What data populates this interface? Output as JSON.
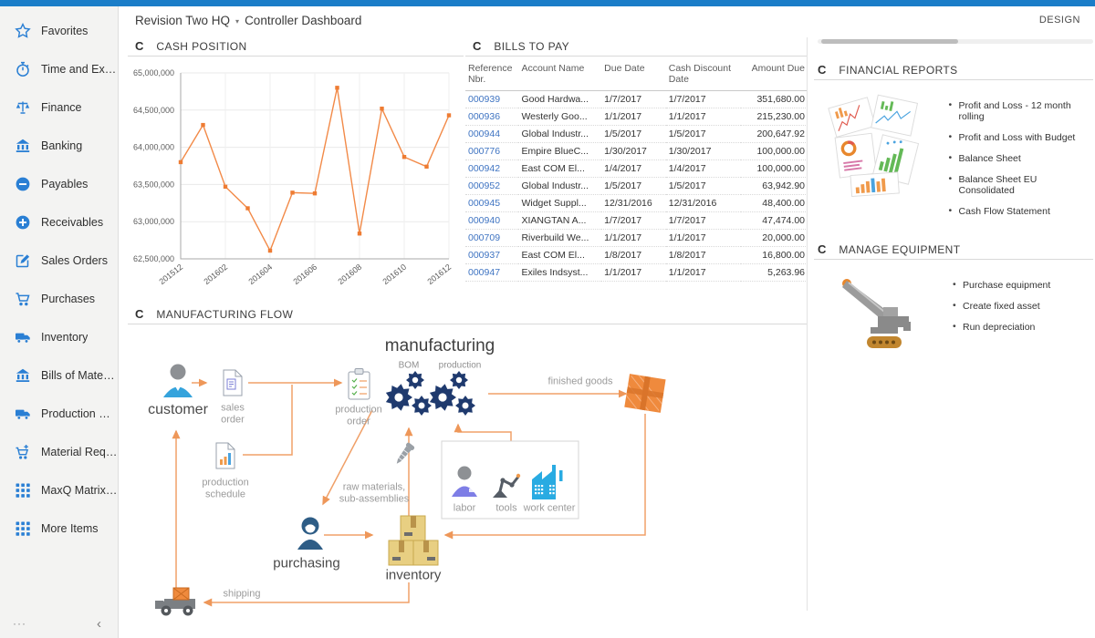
{
  "app": {
    "design_label": "DESIGN"
  },
  "header": {
    "company": "Revision Two HQ",
    "page_title": "Controller Dashboard"
  },
  "icons": {
    "refresh": "C",
    "caret_down": "▾",
    "collapse": "‹",
    "more_dots": "···"
  },
  "sidebar": {
    "items": [
      {
        "label": "Favorites",
        "icon": "star-icon"
      },
      {
        "label": "Time and Expenses",
        "icon": "stopwatch-icon"
      },
      {
        "label": "Finance",
        "icon": "scales-icon"
      },
      {
        "label": "Banking",
        "icon": "bank-icon"
      },
      {
        "label": "Payables",
        "icon": "minus-circle-icon"
      },
      {
        "label": "Receivables",
        "icon": "plus-circle-icon"
      },
      {
        "label": "Sales Orders",
        "icon": "edit-square-icon"
      },
      {
        "label": "Purchases",
        "icon": "cart-icon"
      },
      {
        "label": "Inventory",
        "icon": "truck-icon"
      },
      {
        "label": "Bills of Material",
        "icon": "bank-icon"
      },
      {
        "label": "Production Orders",
        "icon": "truck-icon"
      },
      {
        "label": "Material Requirem...",
        "icon": "cart-plus-icon"
      },
      {
        "label": "MaxQ Matrix Invent...",
        "icon": "grid-icon"
      },
      {
        "label": "More Items",
        "icon": "grid-icon"
      }
    ]
  },
  "widgets": {
    "cash_position": {
      "title": "CASH POSITION",
      "chart_data": {
        "type": "line",
        "x": [
          "201512",
          "201601",
          "201602",
          "201603",
          "201604",
          "201605",
          "201606",
          "201607",
          "201608",
          "201609",
          "201610",
          "201611",
          "201612"
        ],
        "values": [
          63800000,
          64300000,
          63470000,
          63180000,
          62610000,
          63390000,
          63380000,
          64800000,
          62840000,
          64520000,
          63870000,
          63740000,
          64430000
        ],
        "ylim": [
          62500000,
          65000000
        ],
        "y_ticks": [
          "62,500,000",
          "63,000,000",
          "63,500,000",
          "64,000,000",
          "64,500,000",
          "65,000,000"
        ],
        "x_tick_indices": [
          0,
          2,
          4,
          6,
          8,
          10,
          12
        ],
        "series_color": "#f28a48",
        "marker_color": "#ee7c33",
        "grid": true,
        "legend": false
      }
    },
    "bills_to_pay": {
      "title": "BILLS TO PAY",
      "columns": [
        "Reference Nbr.",
        "Account Name",
        "Due Date",
        "Cash Discount Date",
        "Amount Due"
      ],
      "rows": [
        {
          "ref": "000939",
          "account": "Good Hardwa...",
          "due": "1/7/2017",
          "discount": "1/7/2017",
          "amount": "351,680.00"
        },
        {
          "ref": "000936",
          "account": "Westerly Goo...",
          "due": "1/1/2017",
          "discount": "1/1/2017",
          "amount": "215,230.00"
        },
        {
          "ref": "000944",
          "account": "Global Industr...",
          "due": "1/5/2017",
          "discount": "1/5/2017",
          "amount": "200,647.92"
        },
        {
          "ref": "000776",
          "account": "Empire BlueC...",
          "due": "1/30/2017",
          "discount": "1/30/2017",
          "amount": "100,000.00"
        },
        {
          "ref": "000942",
          "account": "East COM El...",
          "due": "1/4/2017",
          "discount": "1/4/2017",
          "amount": "100,000.00"
        },
        {
          "ref": "000952",
          "account": "Global Industr...",
          "due": "1/5/2017",
          "discount": "1/5/2017",
          "amount": "63,942.90"
        },
        {
          "ref": "000945",
          "account": "Widget Suppl...",
          "due": "12/31/2016",
          "discount": "12/31/2016",
          "amount": "48,400.00"
        },
        {
          "ref": "000940",
          "account": "XIANGTAN A...",
          "due": "1/7/2017",
          "discount": "1/7/2017",
          "amount": "47,474.00"
        },
        {
          "ref": "000709",
          "account": "Riverbuild We...",
          "due": "1/1/2017",
          "discount": "1/1/2017",
          "amount": "20,000.00"
        },
        {
          "ref": "000937",
          "account": "East COM El...",
          "due": "1/8/2017",
          "discount": "1/8/2017",
          "amount": "16,800.00"
        },
        {
          "ref": "000947",
          "account": "Exiles Indsyst...",
          "due": "1/1/2017",
          "discount": "1/1/2017",
          "amount": "5,263.96"
        }
      ]
    },
    "financial_reports": {
      "title": "FINANCIAL REPORTS",
      "links": [
        "Profit and Loss - 12 month rolling",
        "Profit and Loss with Budget",
        "Balance Sheet",
        "Balance Sheet EU Consolidated",
        "Cash Flow Statement"
      ]
    },
    "manage_equipment": {
      "title": "MANAGE EQUIPMENT",
      "links": [
        "Purchase equipment",
        "Create fixed asset",
        "Run depreciation"
      ]
    },
    "manufacturing_flow": {
      "title": "MANUFACTURING FLOW",
      "labels": {
        "customer": "customer",
        "sales_order": "sales order",
        "production_schedule": "production schedule",
        "production_order": "production order",
        "manufacturing": "manufacturing",
        "bom": "BOM",
        "production": "production",
        "finished_goods": "finished goods",
        "raw_materials": "raw materials, sub-assemblies",
        "labor": "labor",
        "tools": "tools",
        "work_center": "work center",
        "purchasing": "purchasing",
        "inventory": "inventory",
        "shipping": "shipping"
      }
    }
  }
}
